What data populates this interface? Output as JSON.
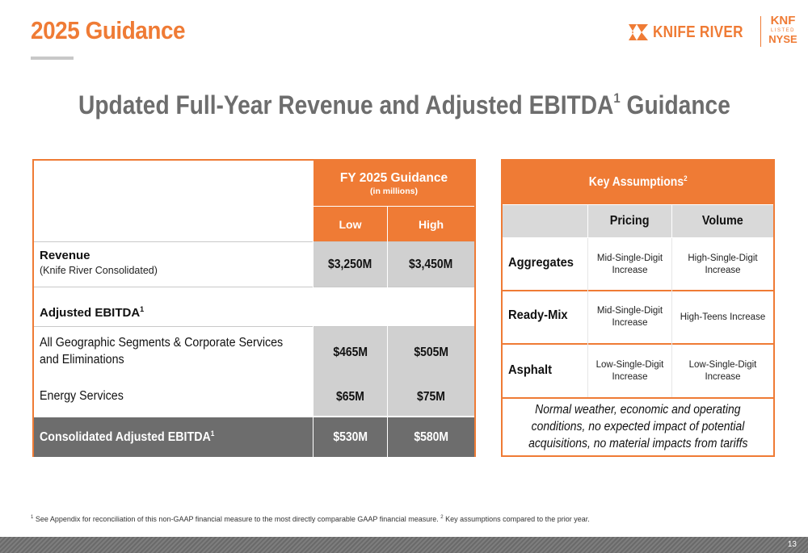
{
  "header": {
    "title": "2025 Guidance",
    "logo_text": "KNIFE RIVER",
    "ticker_symbol": "KNF",
    "listed_label": "LISTED",
    "exchange": "NYSE",
    "accent_color": "#ef7b35"
  },
  "headline": {
    "text": "Updated Full-Year Revenue and Adjusted EBITDA",
    "sup": "1",
    "suffix": " Guidance"
  },
  "guidance_table": {
    "header_title": "FY 2025 Guidance",
    "header_subtitle": "(in millions)",
    "col_low": "Low",
    "col_high": "High",
    "revenue_label": "Revenue",
    "revenue_sublabel": "(Knife River Consolidated)",
    "revenue_low": "$3,250M",
    "revenue_high": "$3,450M",
    "adj_ebitda_label": "Adjusted EBITDA",
    "adj_ebitda_sup": "1",
    "segments_label_line1": "All Geographic Segments & Corporate Services",
    "segments_label_line2": "and Eliminations",
    "segments_low": "$465M",
    "segments_high": "$505M",
    "energy_label": "Energy Services",
    "energy_low": "$65M",
    "energy_high": "$75M",
    "consolidated_label": "Consolidated Adjusted EBITDA",
    "consolidated_sup": "1",
    "consolidated_low": "$530M",
    "consolidated_high": "$580M"
  },
  "assumptions_table": {
    "title": "Key Assumptions",
    "title_sup": "2",
    "col_pricing": "Pricing",
    "col_volume": "Volume",
    "rows": [
      {
        "label": "Aggregates",
        "pricing_1": "Mid-Single-Digit",
        "pricing_2": "Increase",
        "volume_1": "High-Single-Digit",
        "volume_2": "Increase"
      },
      {
        "label": "Ready-Mix",
        "pricing_1": "Mid-Single-Digit",
        "pricing_2": "Increase",
        "volume_1": "High-Teens Increase",
        "volume_2": ""
      },
      {
        "label": "Asphalt",
        "pricing_1": "Low-Single-Digit",
        "pricing_2": "Increase",
        "volume_1": "Low-Single-Digit",
        "volume_2": "Increase"
      }
    ],
    "note_line1": "Normal weather, economic and operating",
    "note_line2": "conditions, no expected impact of potential",
    "note_line3": "acquisitions, no material impacts from tariffs"
  },
  "footnote": {
    "sup1": "1",
    "text1": " See Appendix for reconciliation of this non-GAAP financial measure to the most directly comparable GAAP financial measure. ",
    "sup2": "2",
    "text2": " Key assumptions compared to the prior year."
  },
  "page_number": "13"
}
